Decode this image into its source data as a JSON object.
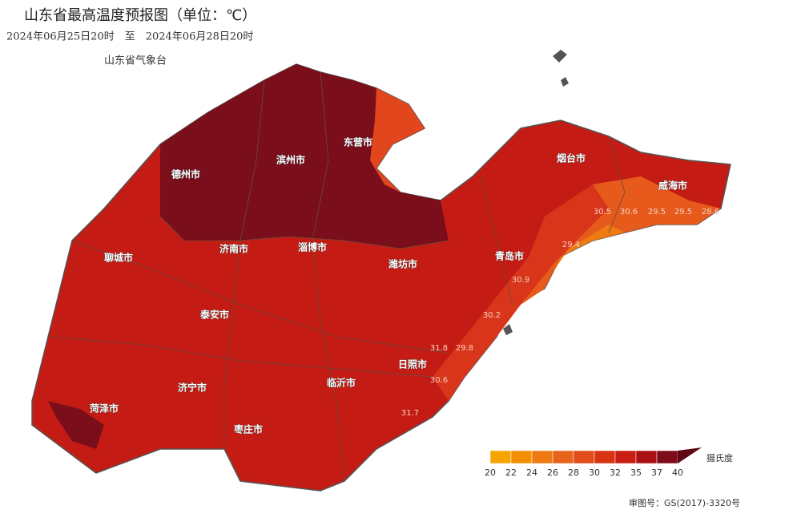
{
  "header": {
    "title": "山东省最高温度预报图（单位：℃）",
    "period": "2024年06月25日20时　至　2024年06月28日20时",
    "agency": "山东省气象台"
  },
  "cities": [
    "德州市",
    "滨州市",
    "东营市",
    "烟台市",
    "威海市",
    "聊城市",
    "济南市",
    "淄博市",
    "潍坊市",
    "青岛市",
    "泰安市",
    "日照市",
    "临沂市",
    "济宁市",
    "菏泽市",
    "枣庄市"
  ],
  "station_values": [
    30.5,
    30.6,
    29.5,
    29.5,
    28.6,
    29.4,
    30.9,
    30.2,
    29.8,
    30.6,
    31.7,
    31.8
  ],
  "legend": {
    "ticks": [
      20,
      22,
      24,
      26,
      28,
      30,
      32,
      35,
      37,
      40
    ],
    "colors": [
      "#f5a500",
      "#f29000",
      "#ee7a12",
      "#e8631a",
      "#e04c1a",
      "#d83412",
      "#c81f12",
      "#ab1012",
      "#7e0b18"
    ],
    "over_color": "#5e0614",
    "unit": "摄氏度"
  },
  "footer": "审图号：GS(2017)-3320号"
}
